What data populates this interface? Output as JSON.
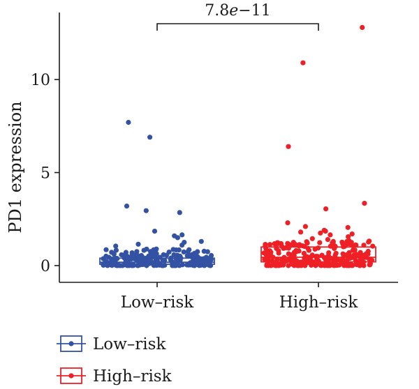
{
  "chart_data": {
    "type": "box-jitter",
    "ylabel": "PD1 expression",
    "xlabel": "",
    "ylim": [
      -0.9,
      13.6
    ],
    "yticks": [
      0,
      5,
      10
    ],
    "categories": [
      "Low–risk",
      "High–risk"
    ],
    "significance": {
      "label": "7.8e−11",
      "mantissa": "7.8",
      "e": "e",
      "exponent": "−11"
    },
    "colors": {
      "Low–risk": "#3452a4",
      "High–risk": "#ee2026"
    },
    "boxes": [
      {
        "category": "Low–risk",
        "q1": 0.07,
        "median": 0.18,
        "q3": 0.4
      },
      {
        "category": "High–risk",
        "q1": 0.2,
        "median": 0.45,
        "q3": 1.0
      }
    ],
    "outliers": [
      {
        "category": "Low–risk",
        "values": [
          7.7,
          6.9,
          3.2,
          2.95,
          2.85,
          1.85,
          1.65,
          1.6,
          1.5,
          1.3,
          1.25,
          1.15,
          1.1,
          1.05
        ]
      },
      {
        "category": "High–risk",
        "values": [
          12.8,
          10.9,
          6.4,
          3.35,
          3.05,
          2.3,
          2.1,
          2.05,
          1.9,
          1.85,
          1.8,
          1.75,
          1.7,
          1.65,
          1.55,
          1.45,
          1.4,
          1.3,
          1.25
        ]
      }
    ],
    "legend": {
      "placement": "bottom-left",
      "entries": [
        "Low–risk",
        "High–risk"
      ]
    }
  }
}
